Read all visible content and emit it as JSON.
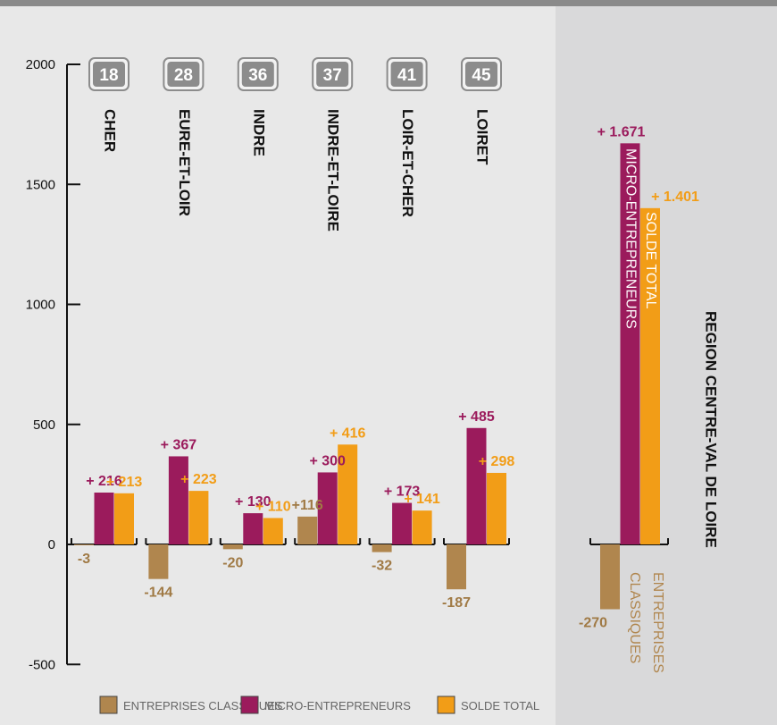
{
  "chart_data": {
    "type": "bar",
    "ylim": [
      -500,
      2000
    ],
    "yticks": [
      -500,
      0,
      500,
      1000,
      1500,
      2000
    ],
    "departments": [
      {
        "code": "18",
        "name": "CHER",
        "values": [
          -3,
          216,
          213
        ],
        "labels": [
          "-3",
          "+ 216",
          "+ 213"
        ]
      },
      {
        "code": "28",
        "name": "EURE-ET-LOIR",
        "values": [
          -144,
          367,
          223
        ],
        "labels": [
          "-144",
          "+ 367",
          "+ 223"
        ]
      },
      {
        "code": "36",
        "name": "INDRE",
        "values": [
          -20,
          130,
          110
        ],
        "labels": [
          "-20",
          "+ 130",
          "+ 110"
        ]
      },
      {
        "code": "37",
        "name": "INDRE-ET-LOIRE",
        "values": [
          116,
          300,
          416
        ],
        "labels": [
          "+116",
          "+ 300",
          "+ 416"
        ]
      },
      {
        "code": "41",
        "name": "LOIR-ET-CHER",
        "values": [
          -32,
          173,
          141
        ],
        "labels": [
          "-32",
          "+ 173",
          "+ 141"
        ]
      },
      {
        "code": "45",
        "name": "LOIRET",
        "values": [
          -187,
          485,
          298
        ],
        "labels": [
          "-187",
          "+ 485",
          "+ 298"
        ]
      }
    ],
    "region": {
      "name": "REGION CENTRE-VAL DE LOIRE",
      "values": [
        -270,
        1671,
        1401
      ],
      "labels": [
        "-270",
        "+ 1.671",
        "+ 1.401"
      ],
      "bar_labels": [
        "ENTREPRISES CLASSIQUES",
        "MICRO-ENTREPRENEURS",
        "SOLDE TOTAL"
      ],
      "cls_label_lines": [
        "ENTREPRISES",
        "CLASSIQUES"
      ]
    },
    "series": [
      {
        "name": "ENTREPRISES CLASSIQUES",
        "color": "#b0864e"
      },
      {
        "name": "MICRO-ENTREPRENEURS",
        "color": "#9b1b5c"
      },
      {
        "name": "SOLDE TOTAL",
        "color": "#f29d17"
      }
    ]
  },
  "colors": {
    "background": "#e8e8e8",
    "region_panel": "#d9d9da",
    "top_strip": "#8a8a8a",
    "badge_fill": "#8c8c8c"
  }
}
